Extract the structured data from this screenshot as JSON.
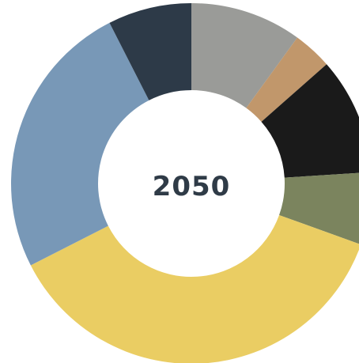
{
  "chart_data": {
    "type": "pie",
    "center_label": "2050",
    "legend": "none",
    "slices": [
      {
        "value": 10.0,
        "color": "#9a9b98"
      },
      {
        "value": 3.5,
        "color": "#c1976b"
      },
      {
        "value": 10.5,
        "color": "#1a1a1a"
      },
      {
        "value": 6.5,
        "color": "#7b845e"
      },
      {
        "value": 37.0,
        "color": "#eacd63"
      },
      {
        "value": 25.0,
        "color": "#7898b7"
      },
      {
        "value": 7.5,
        "color": "#2d3a48"
      }
    ],
    "center_label_color": "#2f3b47"
  }
}
